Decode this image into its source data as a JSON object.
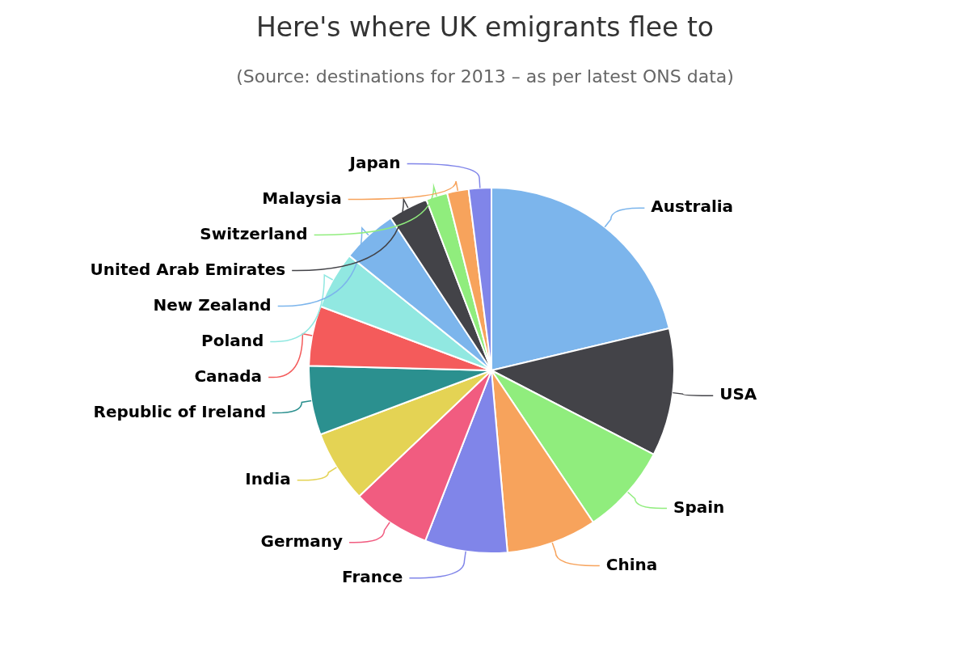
{
  "chart_data": {
    "type": "pie",
    "title": "Here's where UK emigrants flee to",
    "subtitle": "(Source: destinations for 2013 – as per latest ONS data)",
    "categories": [
      "Australia",
      "USA",
      "Spain",
      "China",
      "France",
      "Germany",
      "India",
      "Republic of Ireland",
      "Canada",
      "Poland",
      "New Zealand",
      "United Arab Emirates",
      "Switzerland",
      "Malaysia",
      "Japan"
    ],
    "values": [
      21.3,
      11.3,
      8.0,
      8.0,
      7.3,
      7.0,
      6.4,
      6.1,
      5.3,
      5.1,
      4.9,
      3.5,
      1.9,
      1.9,
      2.0
    ],
    "colors": [
      "#7cb5ec",
      "#434348",
      "#90ed7d",
      "#f7a35c",
      "#8085e9",
      "#f15c80",
      "#e4d354",
      "#2b908f",
      "#f45b5b",
      "#91e8e1",
      "#7cb5ec",
      "#434348",
      "#90ed7d",
      "#f7a35c",
      "#8085e9"
    ]
  }
}
